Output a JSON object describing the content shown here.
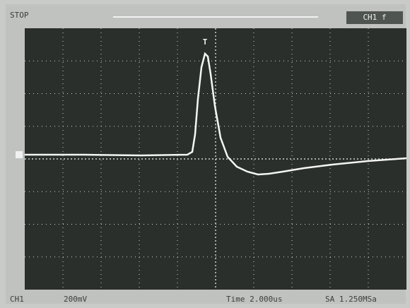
{
  "header": {
    "status": "STOP",
    "trigger_marker": "T",
    "channel": "CH1 f"
  },
  "footer": {
    "channel": "CH1",
    "volts_per_div": "200mV",
    "time_base": "Time 2.000us",
    "sample_rate": "SA 1.250MSa"
  }
}
